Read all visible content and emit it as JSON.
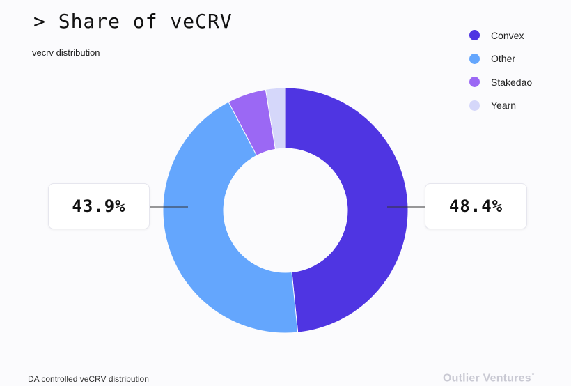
{
  "header": {
    "title": "> Share of veCRV",
    "subtitle": "vecrv distribution"
  },
  "chart_data": {
    "type": "pie",
    "donut": true,
    "categories": [
      "Convex",
      "Other",
      "Stakedao",
      "Yearn"
    ],
    "values": [
      48.4,
      43.9,
      5.1,
      2.6
    ],
    "colors": [
      "#4f35e2",
      "#64a6fd",
      "#9b68f4",
      "#d5d7fa"
    ],
    "legend_position": "top-right",
    "labels": {
      "convex": "48.4%",
      "other": "43.9%"
    }
  },
  "legend": {
    "items": [
      {
        "label": "Convex",
        "color": "#4f35e2"
      },
      {
        "label": "Other",
        "color": "#64a6fd"
      },
      {
        "label": "Stakedao",
        "color": "#9b68f4"
      },
      {
        "label": "Yearn",
        "color": "#d5d7fa"
      }
    ]
  },
  "footer": {
    "note": "DA controlled veCRV distribution",
    "brand": "Outlier Ventures",
    "brand_mark": "*"
  }
}
